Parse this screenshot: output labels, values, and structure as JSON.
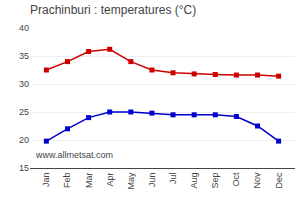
{
  "chart_data": {
    "type": "line",
    "title": "Prachinburi : temperatures (°C)",
    "categories": [
      "Jan",
      "Feb",
      "Mar",
      "Apr",
      "May",
      "Jun",
      "Jul",
      "Aug",
      "Sep",
      "Oct",
      "Nov",
      "Dec"
    ],
    "series": [
      {
        "color": "#cc0000",
        "values": [
          32.5,
          34.0,
          35.8,
          36.2,
          34.0,
          32.5,
          32.0,
          31.8,
          31.7,
          31.6,
          31.6,
          31.4
        ]
      },
      {
        "color": "#0000cc",
        "values": [
          19.8,
          22.0,
          24.0,
          25.0,
          25.0,
          24.8,
          24.5,
          24.5,
          24.5,
          24.2,
          22.5,
          19.8
        ]
      }
    ],
    "ylim": [
      15,
      40
    ],
    "yticks": [
      15,
      20,
      25,
      30,
      35,
      40
    ],
    "grid": true,
    "marker": "square",
    "line_style": "solid",
    "annotations": [
      "www.allmetsat.com"
    ]
  }
}
